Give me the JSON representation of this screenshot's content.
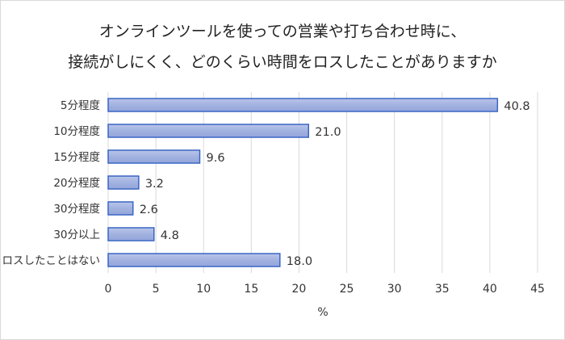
{
  "chart_data": {
    "type": "bar",
    "orientation": "horizontal",
    "title": [
      "オンラインツールを使っての営業や打ち合わせ時に、",
      "接続がしにくく、どのくらい時間をロスしたことがありますか"
    ],
    "xlabel": "%",
    "ylabel": "",
    "categories": [
      "5分程度",
      "10分程度",
      "15分程度",
      "20分程度",
      "30分程度",
      "30分以上",
      "ロスしたことはない"
    ],
    "values": [
      40.8,
      21.0,
      9.6,
      3.2,
      2.6,
      4.8,
      18.0
    ],
    "value_labels": [
      "40.8",
      "21.0",
      "9.6",
      "3.2",
      "2.6",
      "4.8",
      "18.0"
    ],
    "xlim": [
      0,
      45
    ],
    "xticks": [
      "0",
      "5",
      "10",
      "15",
      "20",
      "25",
      "30",
      "35",
      "40",
      "45"
    ],
    "grid": "vertical",
    "legend": "none",
    "colors": {
      "bar_fill": "#a7b6e2",
      "bar_border": "#3a66c4",
      "grid": "#d9d9d9"
    }
  }
}
